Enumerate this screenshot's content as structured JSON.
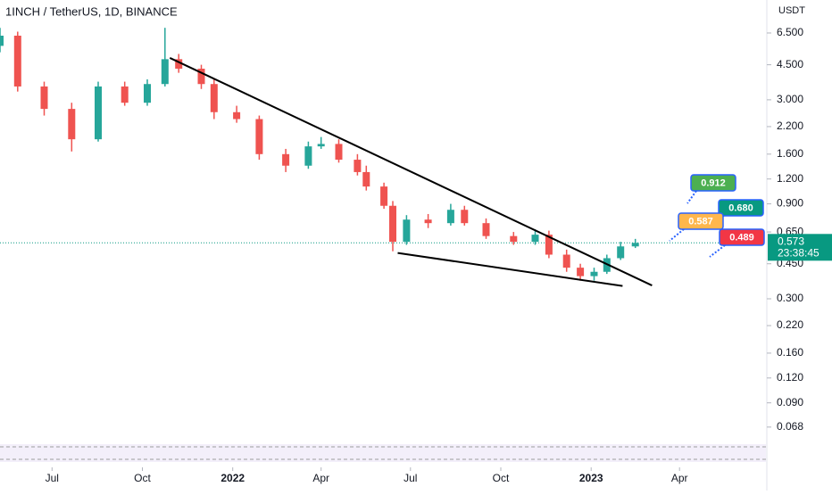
{
  "chart_data": {
    "type": "candlestick",
    "title": "1INCH / TetherUS, 1D, BINANCE",
    "y_unit": "USDT",
    "log_scale": true,
    "up_color": "#26a69a",
    "down_color": "#ef5350",
    "x": [
      0,
      18,
      45,
      73,
      100,
      127,
      150,
      168,
      182,
      205,
      218,
      241,
      264,
      291,
      314,
      327,
      345,
      364,
      373,
      391,
      400,
      414,
      436,
      459,
      473,
      495,
      523,
      545,
      559,
      577,
      591,
      605,
      618,
      632,
      647
    ],
    "open": [
      5.6,
      6.3,
      3.5,
      2.7,
      1.9,
      3.5,
      2.9,
      3.6,
      4.8,
      4.3,
      3.6,
      2.6,
      2.4,
      1.6,
      1.4,
      1.75,
      1.8,
      1.5,
      1.3,
      1.1,
      0.88,
      0.58,
      0.75,
      0.72,
      0.84,
      0.72,
      0.62,
      0.58,
      0.63,
      0.5,
      0.43,
      0.39,
      0.41,
      0.48,
      0.55
    ],
    "high": [
      6.9,
      6.6,
      3.7,
      2.9,
      3.7,
      3.7,
      3.8,
      6.9,
      5.1,
      4.5,
      3.8,
      2.8,
      2.5,
      1.7,
      1.85,
      1.95,
      1.9,
      1.6,
      1.4,
      1.15,
      0.93,
      0.79,
      0.8,
      0.9,
      0.88,
      0.76,
      0.65,
      0.67,
      0.66,
      0.53,
      0.45,
      0.43,
      0.5,
      0.58,
      0.6
    ],
    "low": [
      5.2,
      3.3,
      2.5,
      1.65,
      1.85,
      2.8,
      2.8,
      3.5,
      4.1,
      3.4,
      2.4,
      2.3,
      1.5,
      1.3,
      1.35,
      1.7,
      1.45,
      1.25,
      1.05,
      0.85,
      0.52,
      0.56,
      0.68,
      0.7,
      0.7,
      0.6,
      0.56,
      0.56,
      0.48,
      0.41,
      0.37,
      0.37,
      0.4,
      0.47,
      0.54
    ],
    "close": [
      6.3,
      3.5,
      2.7,
      1.9,
      3.5,
      2.9,
      3.6,
      4.8,
      4.3,
      3.6,
      2.6,
      2.4,
      1.6,
      1.4,
      1.75,
      1.8,
      1.5,
      1.3,
      1.1,
      0.88,
      0.58,
      0.75,
      0.72,
      0.84,
      0.72,
      0.62,
      0.58,
      0.63,
      0.5,
      0.43,
      0.39,
      0.41,
      0.48,
      0.55,
      0.573
    ],
    "xlim": [
      0,
      780
    ],
    "xticks": [
      {
        "value": 53,
        "label": "Jul"
      },
      {
        "value": 145,
        "label": "Oct"
      },
      {
        "value": 237,
        "label": "2022"
      },
      {
        "value": 327,
        "label": "Apr"
      },
      {
        "value": 418,
        "label": "Jul"
      },
      {
        "value": 510,
        "label": "Oct"
      },
      {
        "value": 602,
        "label": "2023"
      },
      {
        "value": 692,
        "label": "Apr"
      }
    ],
    "ylim": [
      0.0606,
      9.52
    ],
    "yticks": [
      {
        "value": 6.5,
        "label": "6.500"
      },
      {
        "value": 4.5,
        "label": "4.500"
      },
      {
        "value": 3.0,
        "label": "3.000"
      },
      {
        "value": 2.2,
        "label": "2.200"
      },
      {
        "value": 1.6,
        "label": "1.600"
      },
      {
        "value": 1.2,
        "label": "1.200"
      },
      {
        "value": 0.9,
        "label": "0.900"
      },
      {
        "value": 0.65,
        "label": "0.650"
      },
      {
        "value": 0.45,
        "label": "0.450"
      },
      {
        "value": 0.3,
        "label": "0.300"
      },
      {
        "value": 0.22,
        "label": "0.220"
      },
      {
        "value": 0.16,
        "label": "0.160"
      },
      {
        "value": 0.12,
        "label": "0.120"
      },
      {
        "value": 0.09,
        "label": "0.090"
      },
      {
        "value": 0.068,
        "label": "0.068"
      }
    ],
    "last_price": 0.573,
    "last_price_color": "#089981",
    "countdown": "23:38:45",
    "trendlines": [
      {
        "x": [
          173,
          664
        ],
        "y": [
          4.87,
          0.35
        ]
      },
      {
        "x": [
          405,
          634
        ],
        "y": [
          0.51,
          0.348
        ]
      }
    ],
    "annotations": [
      {
        "text": "0.912",
        "color": "#4caf50"
      },
      {
        "text": "0.680",
        "color": "#089981"
      },
      {
        "text": "0.587",
        "color": "#ffb74d"
      },
      {
        "text": "0.489",
        "color": "#f23645"
      }
    ]
  }
}
